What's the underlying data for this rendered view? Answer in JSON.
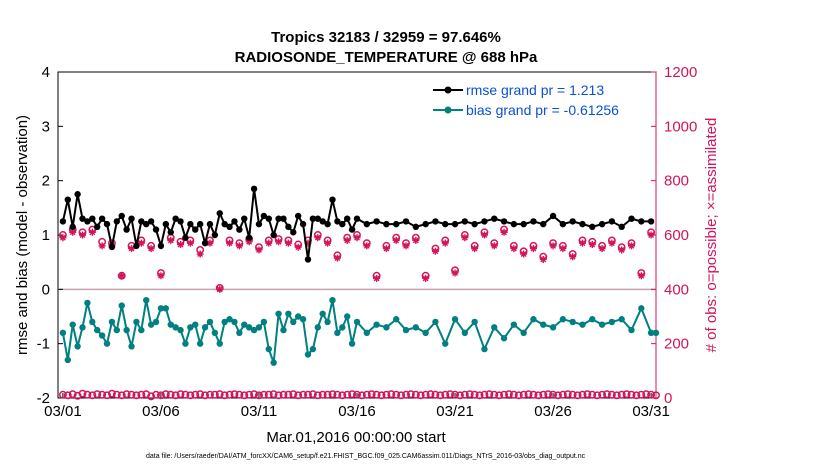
{
  "colors": {
    "rmse": "#000000",
    "bias": "#008080",
    "obs": "#d4145a",
    "zero_line": "#c9a3aa",
    "legend_text": "#0b4fd8"
  },
  "chart_data": {
    "type": "line",
    "title_line1": "Tropics 32183 / 32959 = 97.646%",
    "title_line2": "RADIOSONDE_TEMPERATURE @ 688 hPa",
    "xlabel": "Mar.01,2016 00:00:00 start",
    "ylabel_left": "rmse and bias (model - observation)",
    "ylabel_right": "# of obs: o=possible; ×=assimilated",
    "ylim_left": [
      -2,
      4
    ],
    "ylim_right": [
      0,
      1200
    ],
    "xlim": [
      0.75,
      31.25
    ],
    "xtick_positions": [
      1,
      6,
      11,
      16,
      21,
      26,
      31
    ],
    "xtick_labels": [
      "03/01",
      "03/06",
      "03/11",
      "03/16",
      "03/21",
      "03/26",
      "03/31"
    ],
    "ytick_labels_left": [
      "-2",
      "-1",
      "0",
      "1",
      "2",
      "3",
      "4"
    ],
    "ytick_values_left": [
      -2,
      -1,
      0,
      1,
      2,
      3,
      4
    ],
    "ytick_labels_right": [
      "0",
      "200",
      "400",
      "600",
      "800",
      "1000",
      "1200"
    ],
    "ytick_values_right": [
      0,
      200,
      400,
      600,
      800,
      1000,
      1200
    ],
    "legend": {
      "rmse_label": "rmse grand pr = 1.213",
      "bias_label": "bias grand pr = -0.61256",
      "position": "top-right"
    },
    "footnote": "data file: /Users/raeder/DAI/ATM_forcXX/CAM6_setup/f.e21.FHIST_BGC.f09_025.CAM6assim.011/Diags_NTrS_2016-03/obs_diag_output.nc",
    "series": [
      {
        "name": "rmse",
        "axis": "left",
        "marker": "filled-circle",
        "x": [
          1.0,
          1.25,
          1.5,
          1.75,
          2.0,
          2.25,
          2.5,
          2.75,
          3.0,
          3.25,
          3.5,
          3.75,
          4.0,
          4.25,
          4.5,
          4.75,
          5.0,
          5.25,
          5.5,
          5.75,
          6.0,
          6.25,
          6.5,
          6.75,
          7.0,
          7.25,
          7.5,
          7.75,
          8.0,
          8.25,
          8.5,
          8.75,
          9.0,
          9.25,
          9.5,
          9.75,
          10.0,
          10.25,
          10.5,
          10.75,
          11.0,
          11.25,
          11.5,
          11.75,
          12.0,
          12.25,
          12.5,
          12.75,
          13.0,
          13.25,
          13.5,
          13.75,
          14.0,
          14.25,
          14.5,
          14.75,
          15.0,
          15.25,
          15.5,
          15.75,
          16.0,
          16.5,
          17.0,
          17.5,
          18.0,
          18.5,
          19.0,
          19.5,
          20.0,
          20.5,
          21.0,
          21.5,
          22.0,
          22.5,
          23.0,
          23.5,
          24.0,
          24.5,
          25.0,
          25.5,
          26.0,
          26.5,
          27.0,
          27.5,
          28.0,
          28.5,
          29.0,
          29.5,
          30.0,
          30.5,
          31.0
        ],
        "values": [
          1.25,
          1.65,
          1.15,
          1.75,
          1.3,
          1.25,
          1.3,
          1.15,
          1.3,
          1.2,
          0.78,
          1.25,
          1.35,
          1.1,
          1.3,
          0.8,
          1.25,
          1.2,
          1.25,
          1.1,
          0.8,
          1.2,
          1.05,
          1.3,
          1.25,
          0.95,
          1.2,
          1.1,
          1.2,
          0.85,
          1.2,
          1.0,
          1.4,
          1.2,
          1.15,
          1.25,
          1.1,
          1.3,
          0.95,
          1.85,
          1.2,
          1.35,
          1.3,
          1.0,
          1.3,
          1.3,
          1.15,
          1.05,
          1.35,
          1.2,
          0.55,
          1.3,
          1.3,
          1.25,
          1.2,
          1.65,
          1.25,
          1.2,
          1.3,
          1.1,
          1.3,
          1.2,
          1.25,
          1.2,
          1.2,
          1.25,
          1.15,
          1.2,
          1.25,
          1.2,
          1.2,
          1.25,
          1.2,
          1.25,
          1.3,
          1.25,
          1.2,
          1.2,
          1.25,
          1.2,
          1.35,
          1.2,
          1.25,
          1.2,
          1.15,
          1.2,
          1.25,
          1.15,
          1.3,
          1.25,
          1.25
        ]
      },
      {
        "name": "bias",
        "axis": "left",
        "marker": "filled-circle",
        "x": [
          1.0,
          1.25,
          1.5,
          1.75,
          2.0,
          2.25,
          2.5,
          2.75,
          3.0,
          3.25,
          3.5,
          3.75,
          4.0,
          4.25,
          4.5,
          4.75,
          5.0,
          5.25,
          5.5,
          5.75,
          6.0,
          6.25,
          6.5,
          6.75,
          7.0,
          7.25,
          7.5,
          7.75,
          8.0,
          8.25,
          8.5,
          8.75,
          9.0,
          9.25,
          9.5,
          9.75,
          10.0,
          10.25,
          10.5,
          10.75,
          11.0,
          11.25,
          11.5,
          11.75,
          12.0,
          12.25,
          12.5,
          12.75,
          13.0,
          13.25,
          13.5,
          13.75,
          14.0,
          14.25,
          14.5,
          14.75,
          15.0,
          15.25,
          15.5,
          15.75,
          16.0,
          16.5,
          17.0,
          17.5,
          18.0,
          18.5,
          19.0,
          19.5,
          20.0,
          20.5,
          21.0,
          21.5,
          22.0,
          22.5,
          23.0,
          23.5,
          24.0,
          24.5,
          25.0,
          25.5,
          26.0,
          26.5,
          27.0,
          27.5,
          28.0,
          28.5,
          29.0,
          29.5,
          30.0,
          30.5,
          31.0,
          31.25
        ],
        "values": [
          -0.8,
          -1.3,
          -0.65,
          -1.05,
          -0.7,
          -0.25,
          -0.6,
          -0.75,
          -0.85,
          -1.0,
          -0.6,
          -0.75,
          -0.3,
          -0.75,
          -1.05,
          -0.6,
          -0.75,
          -0.2,
          -0.65,
          -0.6,
          -0.35,
          -0.35,
          -0.65,
          -0.7,
          -0.75,
          -1.0,
          -0.7,
          -0.65,
          -1.0,
          -0.7,
          -0.6,
          -0.8,
          -1.0,
          -0.6,
          -0.55,
          -0.6,
          -0.8,
          -0.65,
          -0.7,
          -0.75,
          -0.7,
          -0.6,
          -1.1,
          -1.35,
          -0.45,
          -0.75,
          -0.45,
          -0.6,
          -0.5,
          -0.55,
          -1.2,
          -1.1,
          -0.7,
          -0.45,
          -0.6,
          -0.2,
          -0.8,
          -0.7,
          -0.5,
          -1.0,
          -0.6,
          -0.8,
          -0.65,
          -0.7,
          -0.55,
          -0.75,
          -0.7,
          -0.8,
          -0.6,
          -1.0,
          -0.55,
          -0.8,
          -0.6,
          -1.1,
          -0.7,
          -0.9,
          -0.65,
          -0.8,
          -0.55,
          -0.65,
          -0.7,
          -0.55,
          -0.6,
          -0.65,
          -0.55,
          -0.65,
          -0.6,
          -0.55,
          -0.75,
          -0.35,
          -0.8,
          -0.8
        ]
      },
      {
        "name": "possible",
        "axis": "right",
        "marker": "open-circle",
        "x": [
          1.0,
          1.5,
          2.0,
          2.5,
          3.0,
          3.5,
          4.0,
          4.5,
          5.0,
          5.5,
          6.0,
          6.5,
          7.0,
          7.5,
          8.0,
          8.5,
          9.0,
          9.5,
          10.0,
          10.5,
          11.0,
          11.5,
          12.0,
          12.5,
          13.0,
          13.5,
          14.0,
          14.5,
          15.0,
          15.5,
          16.0,
          16.5,
          17.0,
          17.5,
          18.0,
          18.5,
          19.0,
          19.5,
          20.0,
          20.5,
          21.0,
          21.5,
          22.0,
          22.5,
          23.0,
          23.5,
          24.0,
          24.5,
          25.0,
          25.5,
          26.0,
          26.5,
          27.0,
          27.5,
          28.0,
          28.5,
          29.0,
          29.5,
          30.0,
          30.5,
          31.0
        ],
        "values": [
          600,
          620,
          610,
          620,
          575,
          570,
          450,
          560,
          580,
          560,
          460,
          590,
          575,
          580,
          545,
          580,
          405,
          580,
          570,
          585,
          555,
          580,
          585,
          580,
          565,
          580,
          600,
          580,
          525,
          590,
          600,
          570,
          450,
          560,
          590,
          570,
          590,
          450,
          550,
          580,
          470,
          600,
          560,
          610,
          570,
          620,
          560,
          540,
          560,
          520,
          570,
          560,
          530,
          580,
          575,
          560,
          580,
          555,
          570,
          460,
          610
        ]
      },
      {
        "name": "assimilated",
        "axis": "right",
        "marker": "asterisk",
        "x": [
          1.0,
          1.5,
          2.0,
          2.5,
          3.0,
          3.5,
          4.0,
          4.5,
          5.0,
          5.5,
          6.0,
          6.5,
          7.0,
          7.5,
          8.0,
          8.5,
          9.0,
          9.5,
          10.0,
          10.5,
          11.0,
          11.5,
          12.0,
          12.5,
          13.0,
          13.5,
          14.0,
          14.5,
          15.0,
          15.5,
          16.0,
          16.5,
          17.0,
          17.5,
          18.0,
          18.5,
          19.0,
          19.5,
          20.0,
          20.5,
          21.0,
          21.5,
          22.0,
          22.5,
          23.0,
          23.5,
          24.0,
          24.5,
          25.0,
          25.5,
          26.0,
          26.5,
          27.0,
          27.5,
          28.0,
          28.5,
          29.0,
          29.5,
          30.0,
          30.5,
          31.0
        ],
        "values": [
          590,
          610,
          600,
          610,
          560,
          560,
          450,
          550,
          570,
          550,
          450,
          580,
          565,
          570,
          530,
          570,
          400,
          570,
          560,
          575,
          545,
          570,
          575,
          570,
          555,
          570,
          590,
          570,
          515,
          580,
          590,
          560,
          440,
          550,
          580,
          560,
          580,
          440,
          540,
          570,
          460,
          590,
          550,
          600,
          560,
          610,
          550,
          530,
          550,
          510,
          560,
          550,
          520,
          570,
          565,
          550,
          570,
          545,
          560,
          450,
          600
        ]
      },
      {
        "name": "possible_bottom",
        "axis": "right",
        "marker": "open-circle",
        "x": [
          1.0,
          1.25,
          1.5,
          1.75,
          2.0,
          2.25,
          2.5,
          2.75,
          3.0,
          3.25,
          3.5,
          3.75,
          4.0,
          4.25,
          4.5,
          4.75,
          5.0,
          5.25,
          5.5,
          5.75,
          6.0,
          6.25,
          6.5,
          6.75,
          7.0,
          7.25,
          7.5,
          7.75,
          8.0,
          8.25,
          8.5,
          8.75,
          9.0,
          9.25,
          9.5,
          9.75,
          10.0,
          10.25,
          10.5,
          10.75,
          11.0,
          11.25,
          11.5,
          11.75,
          12.0,
          12.25,
          12.5,
          12.75,
          13.0,
          13.25,
          13.5,
          13.75,
          14.0,
          14.25,
          14.5,
          14.75,
          15.0,
          15.25,
          15.5,
          15.75,
          16.0,
          16.25,
          16.5,
          16.75,
          17.0,
          17.25,
          17.5,
          17.75,
          18.0,
          18.25,
          18.5,
          18.75,
          19.0,
          19.25,
          19.5,
          19.75,
          20.0,
          20.25,
          20.5,
          20.75,
          21.0,
          21.25,
          21.5,
          21.75,
          22.0,
          22.25,
          22.5,
          22.75,
          23.0,
          23.25,
          23.5,
          23.75,
          24.0,
          24.25,
          24.5,
          24.75,
          25.0,
          25.25,
          25.5,
          25.75,
          26.0,
          26.25,
          26.5,
          26.75,
          27.0,
          27.25,
          27.5,
          27.75,
          28.0,
          28.25,
          28.5,
          28.75,
          29.0,
          29.25,
          29.5,
          29.75,
          30.0,
          30.25,
          30.5,
          30.75,
          31.0,
          31.25
        ],
        "values": [
          12,
          10,
          14,
          8,
          16,
          12,
          10,
          14,
          12,
          10,
          16,
          12,
          10,
          14,
          12,
          10,
          12,
          14,
          6,
          12,
          10,
          14,
          12,
          10,
          14,
          12,
          10,
          12,
          14,
          10,
          12,
          12,
          14,
          10,
          12,
          14,
          12,
          10,
          12,
          14,
          10,
          12,
          12,
          14,
          10,
          12,
          12,
          14,
          10,
          12,
          12,
          14,
          10,
          12,
          12,
          14,
          12,
          10,
          12,
          14,
          12,
          10,
          12,
          14,
          12,
          10,
          12,
          14,
          12,
          10,
          12,
          14,
          12,
          10,
          12,
          14,
          12,
          10,
          12,
          14,
          12,
          10,
          12,
          14,
          12,
          10,
          12,
          14,
          12,
          10,
          12,
          14,
          12,
          10,
          12,
          14,
          12,
          10,
          12,
          14,
          12,
          10,
          12,
          14,
          12,
          10,
          12,
          14,
          12,
          10,
          12,
          14,
          12,
          10,
          12,
          14,
          12,
          10,
          12,
          14,
          12,
          10
        ]
      }
    ]
  }
}
